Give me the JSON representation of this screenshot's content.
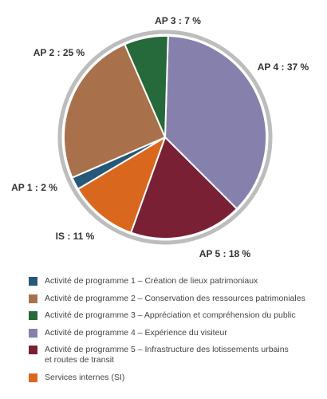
{
  "chart_data": {
    "type": "pie",
    "title": "",
    "slices": [
      {
        "key": "ap4",
        "label": "AP 4 : 37 %",
        "value": 37,
        "color": "#8580ac"
      },
      {
        "key": "ap5",
        "label": "AP 5 : 18 %",
        "value": 18,
        "color": "#7a2035"
      },
      {
        "key": "si",
        "label": "IS : 11 %",
        "value": 11,
        "color": "#d9681e"
      },
      {
        "key": "ap1",
        "label": "AP 1 : 2 %",
        "value": 2,
        "color": "#26587a"
      },
      {
        "key": "ap2",
        "label": "AP 2 : 25 %",
        "value": 25,
        "color": "#a9714b"
      },
      {
        "key": "ap3",
        "label": "AP 3 : 7 %",
        "value": 7,
        "color": "#26693a"
      }
    ],
    "ring_color": "#bdbdbd",
    "legend_placement": "bottom",
    "legend": [
      {
        "key": "ap1",
        "text": "Activité de programme 1 – Création de lieux patrimoniaux",
        "color": "#26587a"
      },
      {
        "key": "ap2",
        "text": "Activité de programme 2 – Conservation des ressources patrimoniales",
        "color": "#a9714b"
      },
      {
        "key": "ap3",
        "text": "Activité de programme 3 – Appréciation et compréhension du public",
        "color": "#26693a"
      },
      {
        "key": "ap4",
        "text": "Activité de programme 4 – Expérience du visiteur",
        "color": "#8580ac"
      },
      {
        "key": "ap5",
        "text": "Activité de programme 5 – Infrastructure des lotissements urbains\net routes de transit",
        "color": "#7a2035"
      },
      {
        "key": "si",
        "text": "Services internes (SI)",
        "color": "#d9681e"
      }
    ]
  }
}
